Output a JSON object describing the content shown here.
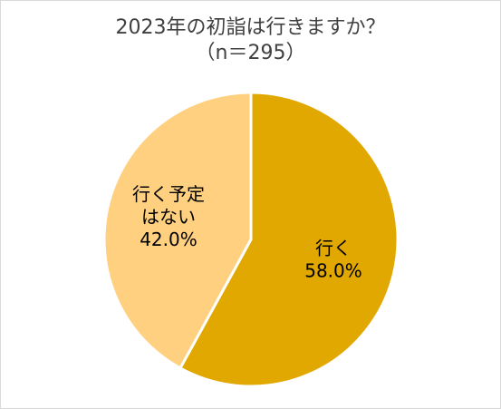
{
  "chart_data": {
    "type": "pie",
    "title": "2023年の初詣は行きますか？",
    "subtitle": "（n＝295）",
    "slices": [
      {
        "label_lines": [
          "行く"
        ],
        "value": 58.0,
        "value_label": "58.0%",
        "color": "#E0A800"
      },
      {
        "label_lines": [
          "行く予定",
          "はない"
        ],
        "value": 42.0,
        "value_label": "42.0%",
        "color": "#FFD080"
      }
    ],
    "start_angle_deg": 0,
    "direction": "clockwise",
    "slice_border_color": "#ffffff"
  }
}
